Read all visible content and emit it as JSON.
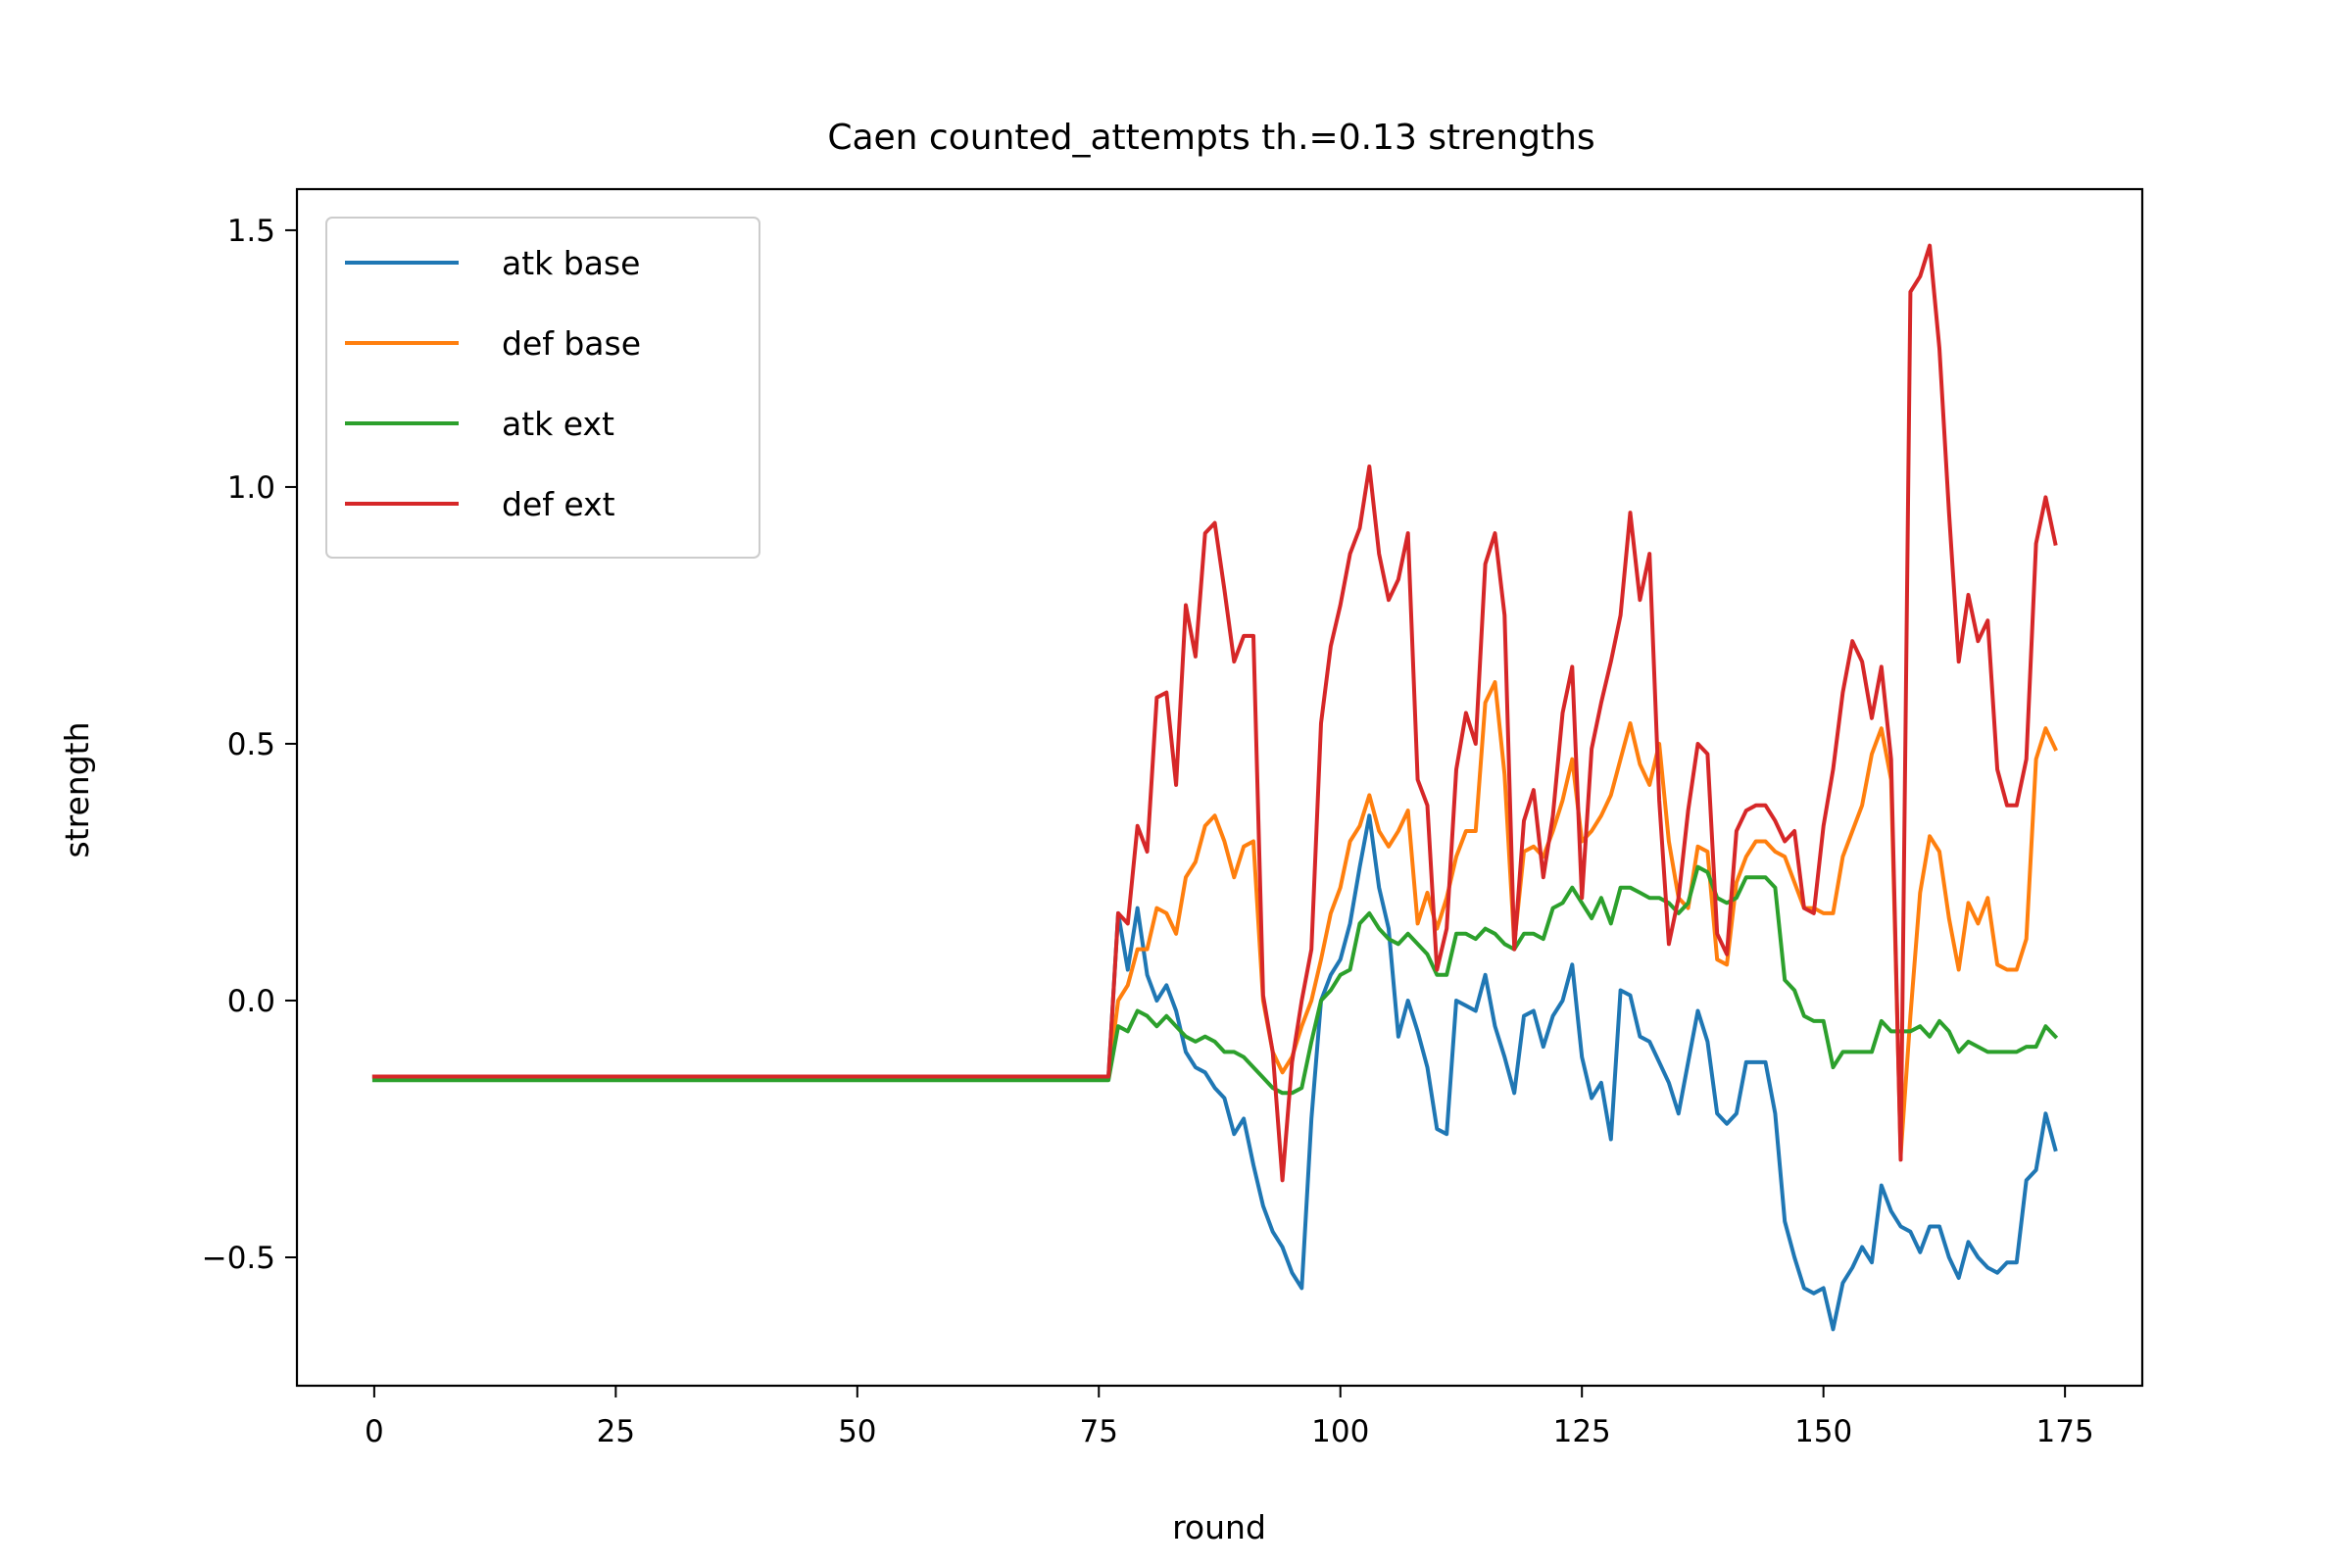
{
  "chart_data": {
    "type": "line",
    "title": "Caen counted_attempts th.=0.13 strengths",
    "xlabel": "round",
    "ylabel": "strength",
    "xlim": [
      -8,
      183
    ],
    "ylim": [
      -0.75,
      1.58
    ],
    "xticks": [
      0,
      25,
      50,
      75,
      100,
      125,
      150,
      175
    ],
    "yticks": [
      -0.5,
      0.0,
      0.5,
      1.0,
      1.5
    ],
    "xtick_labels": [
      "0",
      "25",
      "50",
      "75",
      "100",
      "125",
      "150",
      "175"
    ],
    "ytick_labels": [
      "−0.5",
      "0.0",
      "0.5",
      "1.0",
      "1.5"
    ],
    "grid": false,
    "legend_position": "top-left",
    "x_start": 0,
    "series": [
      {
        "name": "atk base",
        "color": "#1f77b4",
        "flat_until": 76,
        "flat_value": -0.148,
        "values": [
          -0.148,
          0.17,
          0.06,
          0.18,
          0.05,
          0.0,
          0.03,
          -0.02,
          -0.1,
          -0.13,
          -0.14,
          -0.17,
          -0.19,
          -0.26,
          -0.23,
          -0.32,
          -0.4,
          -0.45,
          -0.48,
          -0.53,
          -0.56,
          -0.23,
          0.0,
          0.05,
          0.08,
          0.15,
          0.26,
          0.36,
          0.22,
          0.14,
          -0.07,
          0.0,
          -0.06,
          -0.13,
          -0.25,
          -0.26,
          0.0,
          -0.01,
          -0.02,
          0.05,
          -0.05,
          -0.11,
          -0.18,
          -0.03,
          -0.02,
          -0.09,
          -0.03,
          0.0,
          0.07,
          -0.11,
          -0.19,
          -0.16,
          -0.27,
          0.02,
          0.01,
          -0.07,
          -0.08,
          -0.12,
          -0.16,
          -0.22,
          -0.12,
          -0.02,
          -0.08,
          -0.22,
          -0.24,
          -0.22,
          -0.12,
          -0.12,
          -0.12,
          -0.22,
          -0.43,
          -0.5,
          -0.56,
          -0.57,
          -0.56,
          -0.64,
          -0.55,
          -0.52,
          -0.48,
          -0.51,
          -0.36,
          -0.41,
          -0.44,
          -0.45,
          -0.49,
          -0.44,
          -0.44,
          -0.5,
          -0.54,
          -0.47,
          -0.5,
          -0.52,
          -0.53,
          -0.51,
          -0.51,
          -0.35,
          -0.33,
          -0.22,
          -0.29
        ]
      },
      {
        "name": "def base",
        "color": "#ff7f0e",
        "flat_until": 76,
        "flat_value": -0.148,
        "values": [
          -0.148,
          0.0,
          0.03,
          0.1,
          0.1,
          0.18,
          0.17,
          0.13,
          0.24,
          0.27,
          0.34,
          0.36,
          0.31,
          0.24,
          0.3,
          0.31,
          0.0,
          -0.1,
          -0.14,
          -0.11,
          -0.05,
          0.0,
          0.08,
          0.17,
          0.22,
          0.31,
          0.34,
          0.4,
          0.33,
          0.3,
          0.33,
          0.37,
          0.15,
          0.21,
          0.14,
          0.2,
          0.28,
          0.33,
          0.33,
          0.58,
          0.62,
          0.44,
          0.11,
          0.29,
          0.3,
          0.28,
          0.33,
          0.39,
          0.47,
          0.31,
          0.33,
          0.36,
          0.4,
          0.47,
          0.54,
          0.46,
          0.42,
          0.5,
          0.31,
          0.2,
          0.18,
          0.3,
          0.29,
          0.08,
          0.07,
          0.23,
          0.28,
          0.31,
          0.31,
          0.29,
          0.28,
          0.23,
          0.18,
          0.18,
          0.17,
          0.17,
          0.28,
          0.33,
          0.38,
          0.48,
          0.53,
          0.43,
          -0.3,
          -0.03,
          0.21,
          0.32,
          0.29,
          0.16,
          0.06,
          0.19,
          0.15,
          0.2,
          0.07,
          0.06,
          0.06,
          0.12,
          0.47,
          0.53,
          0.49
        ]
      },
      {
        "name": "atk ext",
        "color": "#2ca02c",
        "flat_until": 76,
        "flat_value": -0.155,
        "values": [
          -0.155,
          -0.05,
          -0.06,
          -0.02,
          -0.03,
          -0.05,
          -0.03,
          -0.05,
          -0.07,
          -0.08,
          -0.07,
          -0.08,
          -0.1,
          -0.1,
          -0.11,
          -0.13,
          -0.15,
          -0.17,
          -0.18,
          -0.18,
          -0.17,
          -0.08,
          0.0,
          0.02,
          0.05,
          0.06,
          0.15,
          0.17,
          0.14,
          0.12,
          0.11,
          0.13,
          0.11,
          0.09,
          0.05,
          0.05,
          0.13,
          0.13,
          0.12,
          0.14,
          0.13,
          0.11,
          0.1,
          0.13,
          0.13,
          0.12,
          0.18,
          0.19,
          0.22,
          0.19,
          0.16,
          0.2,
          0.15,
          0.22,
          0.22,
          0.21,
          0.2,
          0.2,
          0.19,
          0.17,
          0.19,
          0.26,
          0.25,
          0.2,
          0.19,
          0.2,
          0.24,
          0.24,
          0.24,
          0.22,
          0.04,
          0.02,
          -0.03,
          -0.04,
          -0.04,
          -0.13,
          -0.1,
          -0.1,
          -0.1,
          -0.1,
          -0.04,
          -0.06,
          -0.06,
          -0.06,
          -0.05,
          -0.07,
          -0.04,
          -0.06,
          -0.1,
          -0.08,
          -0.09,
          -0.1,
          -0.1,
          -0.1,
          -0.1,
          -0.09,
          -0.09,
          -0.05,
          -0.07
        ]
      },
      {
        "name": "def ext",
        "color": "#d62728",
        "flat_until": 76,
        "flat_value": -0.148,
        "values": [
          -0.148,
          0.17,
          0.15,
          0.34,
          0.29,
          0.59,
          0.6,
          0.42,
          0.77,
          0.67,
          0.91,
          0.93,
          0.8,
          0.66,
          0.71,
          0.71,
          0.01,
          -0.1,
          -0.35,
          -0.12,
          0.0,
          0.1,
          0.54,
          0.69,
          0.77,
          0.87,
          0.92,
          1.04,
          0.87,
          0.78,
          0.82,
          0.91,
          0.43,
          0.38,
          0.06,
          0.14,
          0.45,
          0.56,
          0.5,
          0.85,
          0.91,
          0.75,
          0.1,
          0.35,
          0.41,
          0.24,
          0.36,
          0.56,
          0.65,
          0.2,
          0.49,
          0.58,
          0.66,
          0.75,
          0.95,
          0.78,
          0.87,
          0.39,
          0.11,
          0.2,
          0.37,
          0.5,
          0.48,
          0.13,
          0.09,
          0.33,
          0.37,
          0.38,
          0.38,
          0.35,
          0.31,
          0.33,
          0.18,
          0.17,
          0.34,
          0.45,
          0.6,
          0.7,
          0.66,
          0.55,
          0.65,
          0.47,
          -0.31,
          1.38,
          1.41,
          1.47,
          1.27,
          0.95,
          0.66,
          0.79,
          0.7,
          0.74,
          0.45,
          0.38,
          0.38,
          0.47,
          0.89,
          0.98,
          0.89
        ]
      }
    ]
  }
}
